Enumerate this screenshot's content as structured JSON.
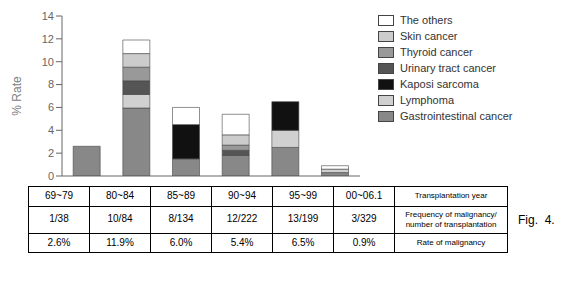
{
  "chart_data": {
    "type": "bar",
    "stacked": true,
    "categories": [
      "69~79",
      "80~84",
      "85~89",
      "90~94",
      "95~99",
      "00~06.1"
    ],
    "series": [
      {
        "name": "Gastrointestinal cancer",
        "color": "#888888",
        "values": [
          2.6,
          5.95,
          1.5,
          1.8,
          2.5,
          0.3
        ]
      },
      {
        "name": "Lymphoma",
        "color": "#d0d0d0",
        "values": [
          0.0,
          1.19,
          0.0,
          0.0,
          1.5,
          0.3
        ]
      },
      {
        "name": "Kaposi sarcoma",
        "color": "#111111",
        "values": [
          0.0,
          0.0,
          3.0,
          0.0,
          2.5,
          0.0
        ]
      },
      {
        "name": "Urinary tract cancer",
        "color": "#555555",
        "values": [
          0.0,
          1.19,
          0.0,
          0.45,
          0.0,
          0.0
        ]
      },
      {
        "name": "Thyroid cancer",
        "color": "#999999",
        "values": [
          0.0,
          1.19,
          0.0,
          0.45,
          0.0,
          0.0
        ]
      },
      {
        "name": "Skin cancer",
        "color": "#cccccc",
        "values": [
          0.0,
          1.19,
          0.0,
          0.9,
          0.0,
          0.0
        ]
      },
      {
        "name": "The others",
        "color": "#ffffff",
        "values": [
          0.0,
          1.19,
          1.5,
          1.8,
          0.0,
          0.3
        ]
      }
    ],
    "ylabel": "% Rate",
    "ylim": [
      0,
      14
    ],
    "yticks": [
      0,
      2,
      4,
      6,
      8,
      10,
      12,
      14
    ],
    "grid": false,
    "legend": "right",
    "tick_labels": "y",
    "table": [
      [
        "69~79",
        "80~84",
        "85~89",
        "90~94",
        "95~99",
        "00~06.1",
        "Transplantation year"
      ],
      [
        "1/38",
        "10/84",
        "8/134",
        "12/222",
        "13/199",
        "3/329",
        "Frequency of malignancy/\nnumber of transplantation"
      ],
      [
        "2.6%",
        "11.9%",
        "6.0%",
        "5.4%",
        "6.5%",
        "0.9%",
        "Rate of malignancy"
      ]
    ],
    "annotations": [
      "Fig.  4."
    ]
  }
}
